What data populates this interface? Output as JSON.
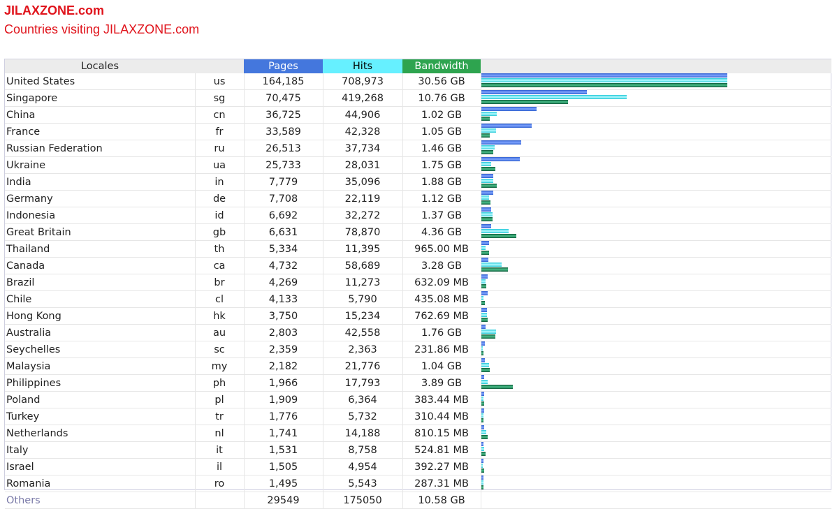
{
  "site": {
    "title": "JILAXZONE.com",
    "subtitle": "Countries visiting JILAXZONE.com"
  },
  "table": {
    "headers": {
      "locales": "Locales",
      "pages": "Pages",
      "hits": "Hits",
      "bandwidth": "Bandwidth"
    },
    "colors": {
      "pages": "#4477dd",
      "hits": "#66f0ff",
      "bandwidth": "#2ea44f"
    },
    "rows": [
      {
        "name": "United States",
        "code": "us",
        "pages": "164,185",
        "hits": "708,973",
        "bandwidth": "30.56 GB",
        "bw_gb": 30.56
      },
      {
        "name": "Singapore",
        "code": "sg",
        "pages": "70,475",
        "hits": "419,268",
        "bandwidth": "10.76 GB",
        "bw_gb": 10.76
      },
      {
        "name": "China",
        "code": "cn",
        "pages": "36,725",
        "hits": "44,906",
        "bandwidth": "1.02 GB",
        "bw_gb": 1.02
      },
      {
        "name": "France",
        "code": "fr",
        "pages": "33,589",
        "hits": "42,328",
        "bandwidth": "1.05 GB",
        "bw_gb": 1.05
      },
      {
        "name": "Russian Federation",
        "code": "ru",
        "pages": "26,513",
        "hits": "37,734",
        "bandwidth": "1.46 GB",
        "bw_gb": 1.46
      },
      {
        "name": "Ukraine",
        "code": "ua",
        "pages": "25,733",
        "hits": "28,031",
        "bandwidth": "1.75 GB",
        "bw_gb": 1.75
      },
      {
        "name": "India",
        "code": "in",
        "pages": "7,779",
        "hits": "35,096",
        "bandwidth": "1.88 GB",
        "bw_gb": 1.88
      },
      {
        "name": "Germany",
        "code": "de",
        "pages": "7,708",
        "hits": "22,119",
        "bandwidth": "1.12 GB",
        "bw_gb": 1.12
      },
      {
        "name": "Indonesia",
        "code": "id",
        "pages": "6,692",
        "hits": "32,272",
        "bandwidth": "1.37 GB",
        "bw_gb": 1.37
      },
      {
        "name": "Great Britain",
        "code": "gb",
        "pages": "6,631",
        "hits": "78,870",
        "bandwidth": "4.36 GB",
        "bw_gb": 4.36
      },
      {
        "name": "Thailand",
        "code": "th",
        "pages": "5,334",
        "hits": "11,395",
        "bandwidth": "965.00 MB",
        "bw_gb": 0.942
      },
      {
        "name": "Canada",
        "code": "ca",
        "pages": "4,732",
        "hits": "58,689",
        "bandwidth": "3.28 GB",
        "bw_gb": 3.28
      },
      {
        "name": "Brazil",
        "code": "br",
        "pages": "4,269",
        "hits": "11,273",
        "bandwidth": "632.09 MB",
        "bw_gb": 0.617
      },
      {
        "name": "Chile",
        "code": "cl",
        "pages": "4,133",
        "hits": "5,790",
        "bandwidth": "435.08 MB",
        "bw_gb": 0.425
      },
      {
        "name": "Hong Kong",
        "code": "hk",
        "pages": "3,750",
        "hits": "15,234",
        "bandwidth": "762.69 MB",
        "bw_gb": 0.745
      },
      {
        "name": "Australia",
        "code": "au",
        "pages": "2,803",
        "hits": "42,558",
        "bandwidth": "1.76 GB",
        "bw_gb": 1.76
      },
      {
        "name": "Seychelles",
        "code": "sc",
        "pages": "2,359",
        "hits": "2,363",
        "bandwidth": "231.86 MB",
        "bw_gb": 0.226
      },
      {
        "name": "Malaysia",
        "code": "my",
        "pages": "2,182",
        "hits": "21,776",
        "bandwidth": "1.04 GB",
        "bw_gb": 1.04
      },
      {
        "name": "Philippines",
        "code": "ph",
        "pages": "1,966",
        "hits": "17,793",
        "bandwidth": "3.89 GB",
        "bw_gb": 3.89
      },
      {
        "name": "Poland",
        "code": "pl",
        "pages": "1,909",
        "hits": "6,364",
        "bandwidth": "383.44 MB",
        "bw_gb": 0.374
      },
      {
        "name": "Turkey",
        "code": "tr",
        "pages": "1,776",
        "hits": "5,732",
        "bandwidth": "310.44 MB",
        "bw_gb": 0.303
      },
      {
        "name": "Netherlands",
        "code": "nl",
        "pages": "1,741",
        "hits": "14,188",
        "bandwidth": "810.15 MB",
        "bw_gb": 0.791
      },
      {
        "name": "Italy",
        "code": "it",
        "pages": "1,531",
        "hits": "8,758",
        "bandwidth": "524.81 MB",
        "bw_gb": 0.513
      },
      {
        "name": "Israel",
        "code": "il",
        "pages": "1,505",
        "hits": "4,954",
        "bandwidth": "392.27 MB",
        "bw_gb": 0.383
      },
      {
        "name": "Romania",
        "code": "ro",
        "pages": "1,495",
        "hits": "5,543",
        "bandwidth": "287.31 MB",
        "bw_gb": 0.281
      }
    ],
    "others": {
      "name": "Others",
      "pages": "29549",
      "hits": "175050",
      "bandwidth": "10.58 GB"
    }
  }
}
